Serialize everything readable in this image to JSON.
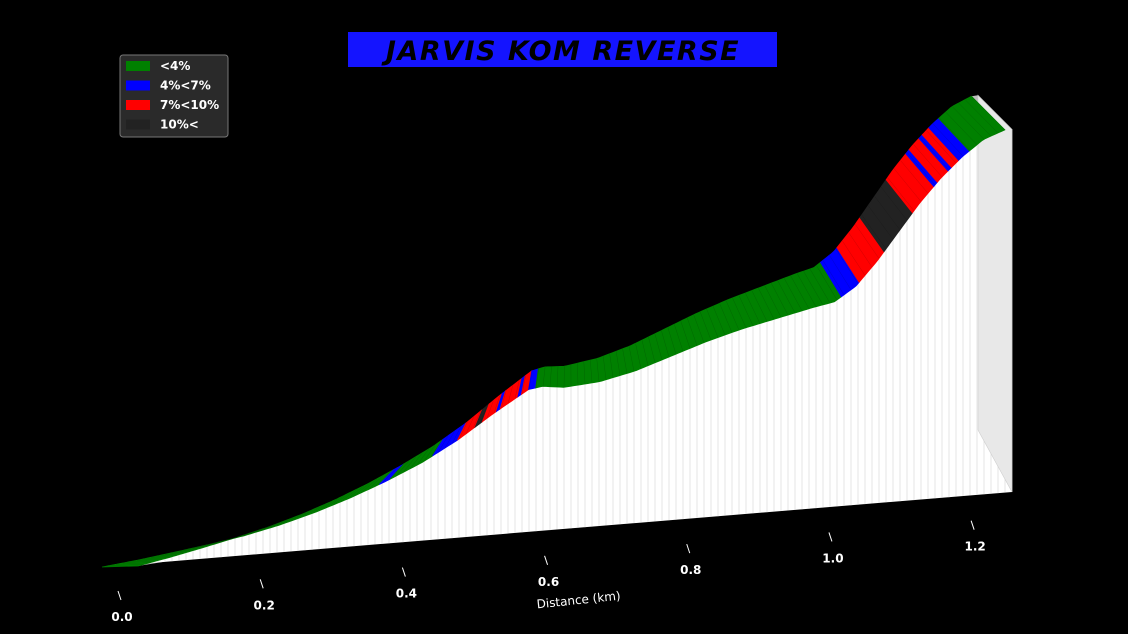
{
  "chart_data": {
    "type": "area",
    "title": "JARVIS KOM REVERSE",
    "xlabel": "Distance (km)",
    "ylabel": "",
    "x_ticks": [
      "0.0",
      "0.2",
      "0.4",
      "0.6",
      "0.8",
      "1.0",
      "1.2"
    ],
    "xlim": [
      0,
      1.28
    ],
    "legend": {
      "placement": "top-left",
      "entries": [
        {
          "label": "<4%",
          "color": "#008000"
        },
        {
          "label": "4%<7%",
          "color": "#0000ff"
        },
        {
          "label": "7%<10%",
          "color": "#ff0000"
        },
        {
          "label": "10%<",
          "color": "#222222"
        }
      ]
    },
    "elevation_profile": {
      "x": [
        0.0,
        0.05,
        0.1,
        0.15,
        0.2,
        0.25,
        0.3,
        0.35,
        0.4,
        0.45,
        0.5,
        0.55,
        0.6,
        0.62,
        0.65,
        0.7,
        0.75,
        0.8,
        0.85,
        0.9,
        0.95,
        1.0,
        1.03,
        1.06,
        1.09,
        1.12,
        1.15,
        1.18,
        1.21,
        1.24,
        1.27
      ],
      "y": [
        0.0,
        1.0,
        2.2,
        3.5,
        5.0,
        7.0,
        9.5,
        12.5,
        16.0,
        20.0,
        25.0,
        31.0,
        36.5,
        37.0,
        36.3,
        37.0,
        39.0,
        42.0,
        45.0,
        47.5,
        49.5,
        51.5,
        52.5,
        56.0,
        62.0,
        69.0,
        76.0,
        82.0,
        87.0,
        91.0,
        93.0
      ]
    },
    "gradient_segments": [
      {
        "from": 0.0,
        "to": 0.39,
        "class": "<4%"
      },
      {
        "from": 0.39,
        "to": 0.405,
        "class": "4%<7%"
      },
      {
        "from": 0.405,
        "to": 0.465,
        "class": "<4%"
      },
      {
        "from": 0.465,
        "to": 0.5,
        "class": "4%<7%"
      },
      {
        "from": 0.5,
        "to": 0.525,
        "class": "7%<10%"
      },
      {
        "from": 0.525,
        "to": 0.535,
        "class": "10%<"
      },
      {
        "from": 0.535,
        "to": 0.555,
        "class": "7%<10%"
      },
      {
        "from": 0.555,
        "to": 0.56,
        "class": "4%<7%"
      },
      {
        "from": 0.56,
        "to": 0.585,
        "class": "7%<10%"
      },
      {
        "from": 0.585,
        "to": 0.59,
        "class": "4%<7%"
      },
      {
        "from": 0.59,
        "to": 0.6,
        "class": "7%<10%"
      },
      {
        "from": 0.6,
        "to": 0.61,
        "class": "4%<7%"
      },
      {
        "from": 0.61,
        "to": 1.04,
        "class": "<4%"
      },
      {
        "from": 1.04,
        "to": 1.065,
        "class": "4%<7%"
      },
      {
        "from": 1.065,
        "to": 1.1,
        "class": "7%<10%"
      },
      {
        "from": 1.1,
        "to": 1.14,
        "class": "10%<"
      },
      {
        "from": 1.14,
        "to": 1.17,
        "class": "7%<10%"
      },
      {
        "from": 1.17,
        "to": 1.175,
        "class": "4%<7%"
      },
      {
        "from": 1.175,
        "to": 1.19,
        "class": "7%<10%"
      },
      {
        "from": 1.19,
        "to": 1.195,
        "class": "4%<7%"
      },
      {
        "from": 1.195,
        "to": 1.205,
        "class": "7%<10%"
      },
      {
        "from": 1.205,
        "to": 1.22,
        "class": "4%<7%"
      },
      {
        "from": 1.22,
        "to": 1.27,
        "class": "<4%"
      }
    ]
  }
}
